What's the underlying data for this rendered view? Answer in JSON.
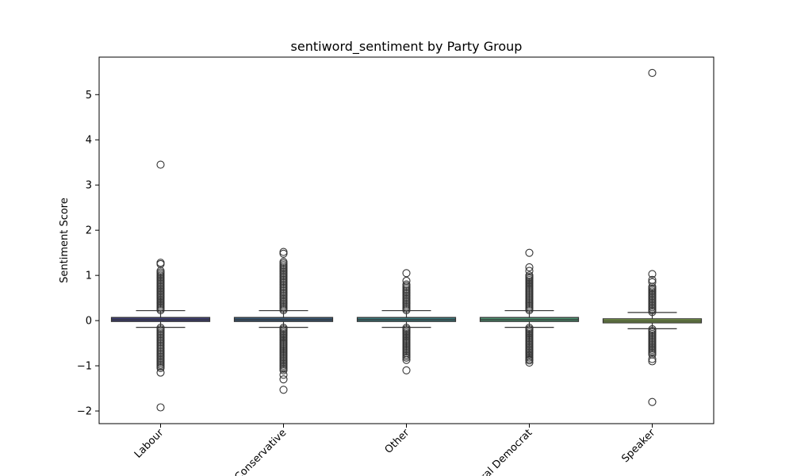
{
  "chart_data": {
    "type": "box",
    "title": "sentiword_sentiment by Party Group",
    "xlabel": "",
    "ylabel": "Sentiment Score",
    "ylim": [
      -2.28,
      5.83
    ],
    "yticks": [
      -2,
      -1,
      0,
      1,
      2,
      3,
      4,
      5
    ],
    "ytick_labels": [
      "−2",
      "−1",
      "0",
      "1",
      "2",
      "3",
      "4",
      "5"
    ],
    "categories": [
      "Labour",
      "Conservative",
      "Other",
      "Liberal Democrat",
      "Speaker"
    ],
    "boxes": [
      {
        "q1": -0.02,
        "median": 0.02,
        "q3": 0.07,
        "whisker_low": -0.15,
        "whisker_high": 0.22,
        "outlier_band_low": [
          -1.05,
          -0.16
        ],
        "outlier_band_high": [
          0.23,
          1.1
        ],
        "outliers": [
          3.45,
          1.28,
          1.25,
          -1.15,
          -1.92
        ]
      },
      {
        "q1": -0.02,
        "median": 0.02,
        "q3": 0.07,
        "whisker_low": -0.15,
        "whisker_high": 0.22,
        "outlier_band_low": [
          -1.1,
          -0.16
        ],
        "outlier_band_high": [
          0.23,
          1.3
        ],
        "outliers": [
          1.52,
          1.48,
          -1.2,
          -1.3,
          -1.53
        ]
      },
      {
        "q1": -0.02,
        "median": 0.02,
        "q3": 0.07,
        "whisker_low": -0.15,
        "whisker_high": 0.22,
        "outlier_band_low": [
          -0.82,
          -0.16
        ],
        "outlier_band_high": [
          0.23,
          0.8
        ],
        "outliers": [
          1.05,
          0.88,
          -0.87,
          -1.1
        ]
      },
      {
        "q1": -0.02,
        "median": 0.02,
        "q3": 0.07,
        "whisker_low": -0.15,
        "whisker_high": 0.22,
        "outlier_band_low": [
          -0.85,
          -0.16
        ],
        "outlier_band_high": [
          0.23,
          1.0
        ],
        "outliers": [
          1.5,
          1.18,
          1.1,
          -0.88,
          -0.93
        ]
      },
      {
        "q1": -0.05,
        "median": -0.01,
        "q3": 0.04,
        "whisker_low": -0.18,
        "whisker_high": 0.18,
        "outlier_band_low": [
          -0.75,
          -0.19
        ],
        "outlier_band_high": [
          0.19,
          0.75
        ],
        "outliers": [
          5.48,
          1.03,
          0.9,
          0.85,
          -0.85,
          -0.9,
          -1.8
        ]
      }
    ],
    "colors": [
      "#3f3f76",
      "#3a5a78",
      "#3b7a7e",
      "#4d9473",
      "#799a47"
    ],
    "grid": false,
    "legend": "none"
  }
}
